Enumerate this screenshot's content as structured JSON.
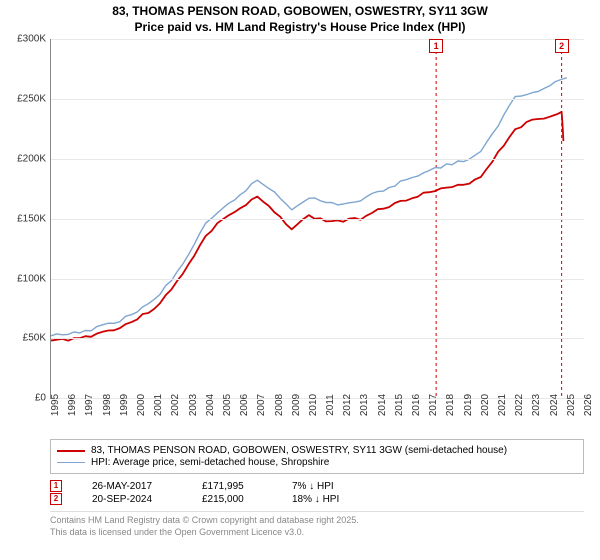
{
  "title_line1": "83, THOMAS PENSON ROAD, GOBOWEN, OSWESTRY, SY11 3GW",
  "title_line2": "Price paid vs. HM Land Registry's House Price Index (HPI)",
  "chart": {
    "type": "line",
    "background_color": "#ffffff",
    "grid_color": "#e8e8e8",
    "axis_color": "#888888",
    "font_size_axis": 10,
    "font_size_title": 12,
    "x_years": [
      1995,
      1996,
      1997,
      1998,
      1999,
      2000,
      2001,
      2002,
      2003,
      2004,
      2005,
      2006,
      2007,
      2008,
      2009,
      2010,
      2011,
      2012,
      2013,
      2014,
      2015,
      2016,
      2017,
      2018,
      2019,
      2020,
      2021,
      2022,
      2023,
      2024,
      2025,
      2026
    ],
    "xlim": [
      1995,
      2026
    ],
    "ylim": [
      0,
      300000
    ],
    "y_ticks": [
      0,
      50000,
      100000,
      150000,
      200000,
      250000,
      300000
    ],
    "y_tick_labels": [
      "£0",
      "£50K",
      "£100K",
      "£150K",
      "£200K",
      "£250K",
      "£300K"
    ],
    "series": [
      {
        "name": "price_paid",
        "label": "83, THOMAS PENSON ROAD, GOBOWEN, OSWESTRY, SY11 3GW (semi-detached house)",
        "color": "#cc0000",
        "line_width": 1.8,
        "x": [
          1995,
          1996,
          1997,
          1998,
          1999,
          2000,
          2001,
          2002,
          2003,
          2004,
          2005,
          2006,
          2007,
          2008,
          2009,
          2010,
          2011,
          2012,
          2013,
          2014,
          2015,
          2016,
          2017,
          2018,
          2019,
          2020,
          2021,
          2022,
          2023,
          2024,
          2024.7,
          2024.8
        ],
        "y": [
          48000,
          49000,
          51000,
          55000,
          59000,
          66000,
          75000,
          90000,
          112000,
          135000,
          150000,
          158000,
          168000,
          155000,
          142000,
          152000,
          148000,
          148000,
          150000,
          158000,
          162000,
          168000,
          172000,
          175000,
          178000,
          185000,
          205000,
          225000,
          232000,
          235000,
          240000,
          215000
        ]
      },
      {
        "name": "hpi",
        "label": "HPI: Average price, semi-detached house, Shropshire",
        "color": "#7fa6d0",
        "line_width": 1.4,
        "x": [
          1995,
          1996,
          1997,
          1998,
          1999,
          2000,
          2001,
          2002,
          2003,
          2004,
          2005,
          2006,
          2007,
          2008,
          2009,
          2010,
          2011,
          2012,
          2013,
          2014,
          2015,
          2016,
          2017,
          2018,
          2019,
          2020,
          2021,
          2022,
          2023,
          2024,
          2025
        ],
        "y": [
          52000,
          53000,
          56000,
          60000,
          65000,
          72000,
          82000,
          98000,
          120000,
          145000,
          158000,
          170000,
          182000,
          172000,
          158000,
          168000,
          163000,
          162000,
          165000,
          172000,
          178000,
          185000,
          190000,
          195000,
          198000,
          205000,
          228000,
          252000,
          255000,
          262000,
          268000
        ]
      }
    ],
    "markers": [
      {
        "n": "1",
        "x": 2017.4,
        "y_top": 300000,
        "color": "#cc0000"
      },
      {
        "n": "2",
        "x": 2024.7,
        "y_top": 300000,
        "color": "#cc0000"
      }
    ]
  },
  "legend": {
    "border_color": "#bbbbbb",
    "items": [
      {
        "color": "#cc0000",
        "width": 2.0,
        "label": "83, THOMAS PENSON ROAD, GOBOWEN, OSWESTRY, SY11 3GW (semi-detached house)"
      },
      {
        "color": "#7fa6d0",
        "width": 1.4,
        "label": "HPI: Average price, semi-detached house, Shropshire"
      }
    ]
  },
  "transactions": [
    {
      "n": "1",
      "color": "#cc0000",
      "date": "26-MAY-2017",
      "price": "£171,995",
      "pct": "7% ↓ HPI"
    },
    {
      "n": "2",
      "color": "#cc0000",
      "date": "20-SEP-2024",
      "price": "£215,000",
      "pct": "18% ↓ HPI"
    }
  ],
  "footer_line1": "Contains HM Land Registry data © Crown copyright and database right 2025.",
  "footer_line2": "This data is licensed under the Open Government Licence v3.0."
}
